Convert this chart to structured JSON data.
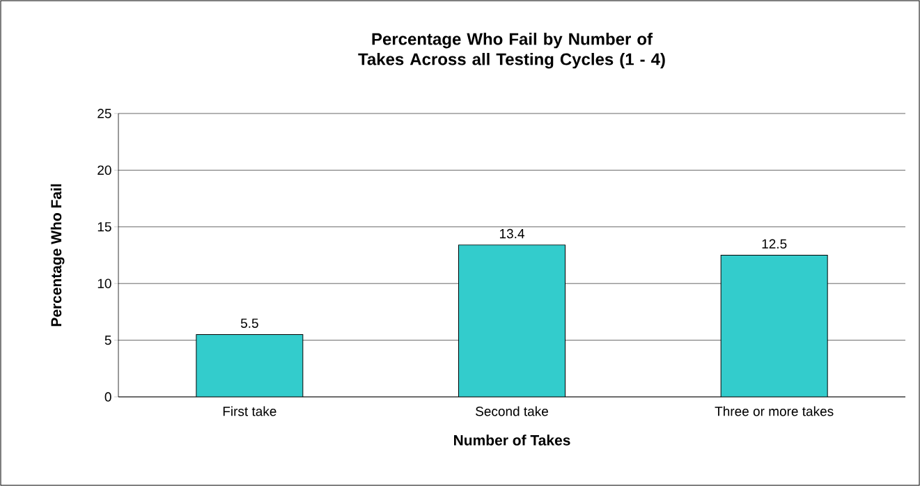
{
  "chart_data": {
    "type": "bar",
    "title": "Percentage Who Fail by Number of Takes Across all Testing Cycles (1 - 4)",
    "xlabel": "Number of Takes",
    "ylabel": "Percentage Who Fail",
    "categories": [
      "First take",
      "Second take",
      "Three or more takes"
    ],
    "values": [
      5.5,
      13.4,
      12.5
    ],
    "color": "#33cccc",
    "ylim": [
      0,
      25
    ],
    "yticks": [
      0,
      5,
      10,
      15,
      20,
      25
    ],
    "grid": "y",
    "data_labels": true
  }
}
